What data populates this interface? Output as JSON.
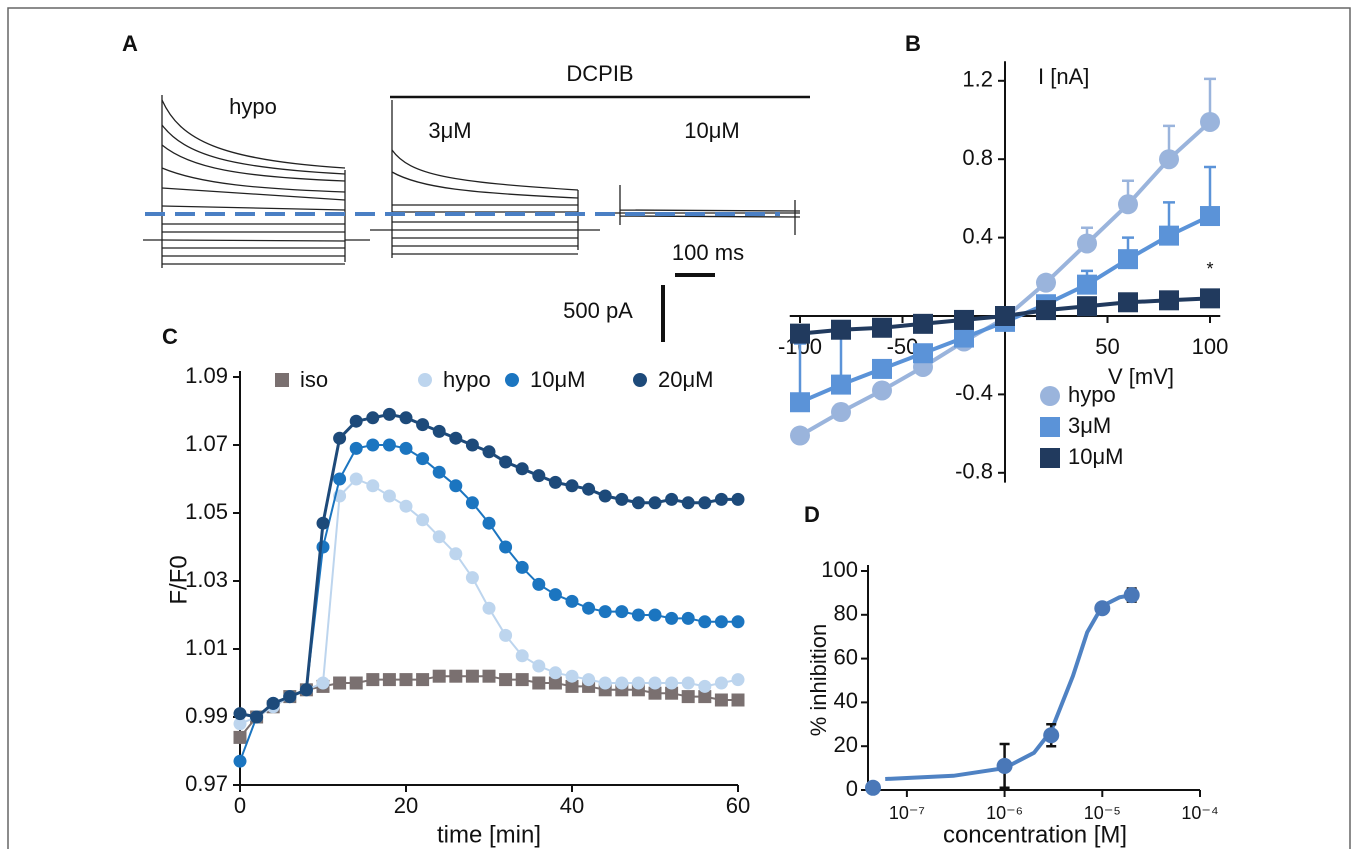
{
  "chart_data": [
    {
      "type": "traces",
      "panel": "A",
      "labels": [
        "hypo",
        "3μM",
        "10μM"
      ],
      "bracket_label": "DCPIB",
      "scale_x": "100 ms",
      "scale_y": "500 pA"
    },
    {
      "type": "iv",
      "panel": "B",
      "y_label": "I [nA]",
      "x_label": "V [mV]",
      "annotation": "*",
      "x": [
        -100,
        -80,
        -60,
        -40,
        -20,
        0,
        20,
        40,
        60,
        80,
        100
      ],
      "xlim": [
        -105,
        105
      ],
      "ylim": [
        -0.85,
        1.3
      ],
      "xticks": [
        -100,
        -50,
        50,
        100
      ],
      "yticks": [
        -0.8,
        -0.4,
        0.4,
        0.8,
        1.2
      ],
      "series": [
        {
          "name": "hypo",
          "color": "#9ab4dc",
          "marker": "circle",
          "values": [
            -0.61,
            -0.49,
            -0.38,
            -0.26,
            -0.13,
            -0.01,
            0.17,
            0.37,
            0.57,
            0.8,
            0.99
          ],
          "errors": [
            null,
            null,
            null,
            null,
            null,
            null,
            null,
            0.08,
            0.12,
            0.17,
            0.22
          ]
        },
        {
          "name": "3μM",
          "color": "#5b93d8",
          "marker": "square",
          "values": [
            -0.44,
            -0.35,
            -0.27,
            -0.19,
            -0.11,
            -0.03,
            0.06,
            0.16,
            0.29,
            0.41,
            0.51
          ],
          "errors": [
            0.3,
            0.31,
            null,
            null,
            null,
            null,
            null,
            0.07,
            0.11,
            0.17,
            0.25
          ]
        },
        {
          "name": "10μM",
          "color": "#213a5e",
          "marker": "square",
          "values": [
            -0.09,
            -0.07,
            -0.06,
            -0.04,
            -0.02,
            0,
            0.03,
            0.05,
            0.07,
            0.08,
            0.09
          ]
        }
      ]
    },
    {
      "type": "time",
      "panel": "C",
      "y_label": "F/F0",
      "x_label": "time [min]",
      "x": [
        0,
        2,
        4,
        6,
        8,
        10,
        12,
        14,
        16,
        18,
        20,
        22,
        24,
        26,
        28,
        30,
        32,
        34,
        36,
        38,
        40,
        42,
        44,
        46,
        48,
        50,
        52,
        54,
        56,
        58,
        60
      ],
      "xlim": [
        0,
        60
      ],
      "ylim": [
        0.97,
        1.09
      ],
      "xticks": [
        0,
        20,
        40,
        60
      ],
      "yticks": [
        0.97,
        0.99,
        1.01,
        1.03,
        1.05,
        1.07,
        1.09
      ],
      "series": [
        {
          "name": "iso",
          "color": "#7a7070",
          "marker": "square",
          "values": [
            0.984,
            0.99,
            0.993,
            0.996,
            0.998,
            0.999,
            1.0,
            1.0,
            1.001,
            1.001,
            1.001,
            1.001,
            1.002,
            1.002,
            1.002,
            1.002,
            1.001,
            1.001,
            1.0,
            1.0,
            0.999,
            0.999,
            0.998,
            0.998,
            0.998,
            0.997,
            0.997,
            0.996,
            0.996,
            0.995,
            0.995
          ]
        },
        {
          "name": "hypo",
          "color": "#bdd5ee",
          "marker": "circle",
          "values": [
            0.988,
            0.99,
            0.993,
            0.996,
            0.998,
            1.0,
            1.055,
            1.06,
            1.058,
            1.055,
            1.052,
            1.048,
            1.043,
            1.038,
            1.031,
            1.022,
            1.014,
            1.008,
            1.005,
            1.003,
            1.002,
            1.001,
            1.0,
            1.0,
            1.0,
            1.0,
            1.0,
            1.0,
            0.999,
            1.0,
            1.001
          ]
        },
        {
          "name": "10μM",
          "color": "#1b75c0",
          "marker": "circle",
          "values": [
            0.977,
            0.99,
            0.994,
            0.996,
            0.998,
            1.04,
            1.06,
            1.069,
            1.07,
            1.07,
            1.069,
            1.066,
            1.062,
            1.058,
            1.053,
            1.047,
            1.04,
            1.034,
            1.029,
            1.026,
            1.024,
            1.022,
            1.021,
            1.021,
            1.02,
            1.02,
            1.019,
            1.019,
            1.018,
            1.018,
            1.018
          ]
        },
        {
          "name": "20μM",
          "color": "#1d4a7a",
          "marker": "circle",
          "values": [
            0.991,
            0.99,
            0.994,
            0.996,
            0.998,
            1.047,
            1.072,
            1.077,
            1.078,
            1.079,
            1.078,
            1.076,
            1.074,
            1.072,
            1.07,
            1.068,
            1.065,
            1.063,
            1.061,
            1.059,
            1.058,
            1.057,
            1.055,
            1.054,
            1.053,
            1.053,
            1.054,
            1.053,
            1.053,
            1.054,
            1.054
          ]
        }
      ]
    },
    {
      "type": "dose",
      "panel": "D",
      "y_label": "% inhibition",
      "x_label": "concentration [M]",
      "log_x": true,
      "color": "#4a78b8",
      "x": [
        4.5e-08,
        1e-06,
        3e-06,
        1e-05,
        2e-05
      ],
      "values": [
        1,
        11,
        25,
        83,
        89
      ],
      "errors": [
        null,
        10,
        5,
        2,
        3
      ],
      "fit_x": [
        6e-08,
        1e-07,
        3e-07,
        1e-06,
        2e-06,
        3e-06,
        5e-06,
        7e-06,
        1e-05,
        1.5e-05,
        2e-05
      ],
      "fit_values": [
        5,
        5.5,
        6.5,
        10,
        17,
        27,
        52,
        72,
        84,
        88,
        89
      ],
      "xlim": [
        4e-08,
        0.0001
      ],
      "ylim": [
        0,
        100
      ],
      "xticks": [
        {
          "value": 1e-07,
          "label": "10⁻⁷"
        },
        {
          "value": 1e-06,
          "label": "10⁻⁶"
        },
        {
          "value": 1e-05,
          "label": "10⁻⁵"
        },
        {
          "value": 0.0001,
          "label": "10⁻⁴"
        }
      ],
      "yticks": [
        0,
        20,
        40,
        60,
        80,
        100
      ]
    }
  ]
}
